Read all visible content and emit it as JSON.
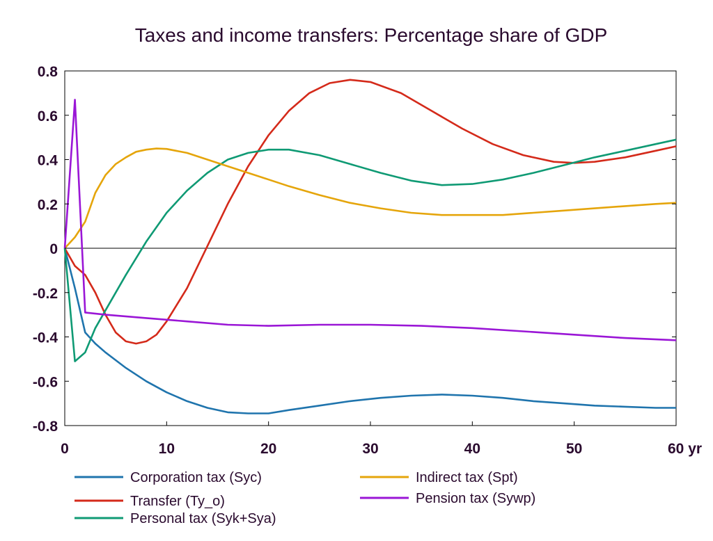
{
  "chart_data": {
    "type": "line",
    "title": "Taxes and income transfers: Percentage share of GDP",
    "xlabel": "",
    "ylabel": "",
    "xlim": [
      0,
      60
    ],
    "ylim": [
      -0.8,
      0.8
    ],
    "grid": false,
    "legend_position": "bottom",
    "x_ticks": [
      0,
      10,
      20,
      30,
      40,
      50,
      60
    ],
    "x_tick_labels": [
      "0",
      "10",
      "20",
      "30",
      "40",
      "50",
      "60 yr"
    ],
    "y_ticks": [
      -0.8,
      -0.6,
      -0.4,
      -0.2,
      0,
      0.2,
      0.4,
      0.6,
      0.8
    ],
    "y_tick_labels": [
      "-0.8",
      "-0.6",
      "-0.4",
      "-0.2",
      "0",
      "0.2",
      "0.4",
      "0.6",
      "0.8"
    ],
    "series": [
      {
        "name": "Corporation tax (Syc)",
        "color": "#1f74ad",
        "x": [
          0,
          1,
          2,
          3,
          4,
          6,
          8,
          10,
          12,
          14,
          16,
          18,
          20,
          22,
          25,
          28,
          31,
          34,
          37,
          40,
          43,
          46,
          49,
          52,
          55,
          58,
          60
        ],
        "values": [
          0,
          -0.18,
          -0.38,
          -0.43,
          -0.47,
          -0.54,
          -0.6,
          -0.65,
          -0.69,
          -0.72,
          -0.74,
          -0.745,
          -0.745,
          -0.73,
          -0.71,
          -0.69,
          -0.675,
          -0.665,
          -0.66,
          -0.665,
          -0.675,
          -0.69,
          -0.7,
          -0.71,
          -0.715,
          -0.72,
          -0.72
        ]
      },
      {
        "name": "Transfer (Ty_o)",
        "color": "#d42a1a",
        "x": [
          0,
          1,
          2,
          3,
          4,
          5,
          6,
          7,
          8,
          9,
          10,
          12,
          14,
          16,
          18,
          20,
          22,
          24,
          26,
          28,
          30,
          33,
          36,
          39,
          42,
          45,
          48,
          50,
          52,
          55,
          58,
          60
        ],
        "values": [
          0,
          -0.08,
          -0.12,
          -0.2,
          -0.3,
          -0.38,
          -0.42,
          -0.43,
          -0.42,
          -0.39,
          -0.33,
          -0.18,
          0.01,
          0.2,
          0.37,
          0.51,
          0.62,
          0.7,
          0.745,
          0.76,
          0.75,
          0.7,
          0.62,
          0.54,
          0.47,
          0.42,
          0.39,
          0.385,
          0.39,
          0.41,
          0.44,
          0.46
        ]
      },
      {
        "name": "Personal tax (Syk+Sya)",
        "color": "#0f9a74",
        "x": [
          0,
          1,
          2,
          3,
          4,
          6,
          8,
          10,
          12,
          14,
          16,
          18,
          20,
          22,
          25,
          28,
          31,
          34,
          37,
          40,
          43,
          46,
          49,
          52,
          55,
          58,
          60
        ],
        "values": [
          0,
          -0.51,
          -0.47,
          -0.36,
          -0.28,
          -0.12,
          0.03,
          0.16,
          0.26,
          0.34,
          0.4,
          0.43,
          0.445,
          0.445,
          0.42,
          0.38,
          0.34,
          0.305,
          0.285,
          0.29,
          0.31,
          0.34,
          0.375,
          0.41,
          0.44,
          0.47,
          0.49
        ]
      },
      {
        "name": "Indirect tax (Spt)",
        "color": "#e5a50b",
        "x": [
          0,
          1,
          2,
          3,
          4,
          5,
          6,
          7,
          8,
          9,
          10,
          12,
          14,
          16,
          18,
          20,
          22,
          25,
          28,
          31,
          34,
          37,
          40,
          43,
          46,
          49,
          52,
          55,
          58,
          60
        ],
        "values": [
          0,
          0.05,
          0.12,
          0.25,
          0.33,
          0.38,
          0.41,
          0.435,
          0.445,
          0.45,
          0.448,
          0.43,
          0.4,
          0.37,
          0.34,
          0.31,
          0.28,
          0.24,
          0.205,
          0.18,
          0.16,
          0.15,
          0.15,
          0.15,
          0.16,
          0.17,
          0.18,
          0.19,
          0.2,
          0.205
        ]
      },
      {
        "name": "Pension tax (Sywp)",
        "color": "#9a16d6",
        "x": [
          0,
          1,
          2,
          4,
          8,
          12,
          16,
          20,
          25,
          30,
          35,
          40,
          45,
          50,
          55,
          60
        ],
        "values": [
          0,
          0.67,
          -0.29,
          -0.3,
          -0.315,
          -0.33,
          -0.345,
          -0.35,
          -0.345,
          -0.345,
          -0.35,
          -0.36,
          -0.375,
          -0.39,
          -0.405,
          -0.415
        ]
      }
    ]
  }
}
